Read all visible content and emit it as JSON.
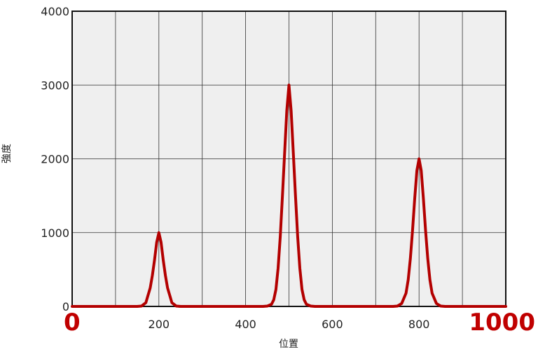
{
  "chart_data": {
    "type": "line",
    "title": "",
    "xlabel": "位置",
    "ylabel": "強度",
    "xlim": [
      0,
      1000
    ],
    "ylim": [
      0,
      4000
    ],
    "x_ticks": [
      {
        "value": 0,
        "label": "0",
        "emphasis": true
      },
      {
        "value": 200,
        "label": "200",
        "emphasis": false
      },
      {
        "value": 400,
        "label": "400",
        "emphasis": false
      },
      {
        "value": 600,
        "label": "600",
        "emphasis": false
      },
      {
        "value": 800,
        "label": "800",
        "emphasis": false
      },
      {
        "value": 1000,
        "label": "1000",
        "emphasis": true
      }
    ],
    "y_ticks": [
      {
        "value": 0,
        "label": "0"
      },
      {
        "value": 1000,
        "label": "1000"
      },
      {
        "value": 2000,
        "label": "2000"
      },
      {
        "value": 3000,
        "label": "3000"
      },
      {
        "value": 4000,
        "label": "4000"
      }
    ],
    "grid": true,
    "grid_x_step": 100,
    "grid_y_step": 1000,
    "series": [
      {
        "color": "#b30000",
        "points": [
          [
            0,
            0
          ],
          [
            150,
            0
          ],
          [
            160,
            5
          ],
          [
            170,
            50
          ],
          [
            180,
            250
          ],
          [
            185,
            420
          ],
          [
            190,
            630
          ],
          [
            195,
            870
          ],
          [
            200,
            1000
          ],
          [
            205,
            870
          ],
          [
            210,
            630
          ],
          [
            215,
            420
          ],
          [
            220,
            250
          ],
          [
            230,
            50
          ],
          [
            240,
            5
          ],
          [
            250,
            0
          ],
          [
            440,
            0
          ],
          [
            450,
            5
          ],
          [
            460,
            30
          ],
          [
            465,
            90
          ],
          [
            470,
            230
          ],
          [
            475,
            520
          ],
          [
            480,
            950
          ],
          [
            485,
            1500
          ],
          [
            490,
            2080
          ],
          [
            495,
            2650
          ],
          [
            500,
            3000
          ],
          [
            505,
            2650
          ],
          [
            510,
            2080
          ],
          [
            515,
            1500
          ],
          [
            520,
            950
          ],
          [
            525,
            520
          ],
          [
            530,
            230
          ],
          [
            535,
            90
          ],
          [
            540,
            30
          ],
          [
            550,
            5
          ],
          [
            560,
            0
          ],
          [
            740,
            0
          ],
          [
            750,
            5
          ],
          [
            760,
            40
          ],
          [
            770,
            180
          ],
          [
            775,
            360
          ],
          [
            780,
            650
          ],
          [
            785,
            1030
          ],
          [
            790,
            1460
          ],
          [
            795,
            1840
          ],
          [
            800,
            2000
          ],
          [
            805,
            1840
          ],
          [
            810,
            1460
          ],
          [
            815,
            1030
          ],
          [
            820,
            650
          ],
          [
            825,
            360
          ],
          [
            830,
            180
          ],
          [
            840,
            40
          ],
          [
            850,
            5
          ],
          [
            860,
            0
          ],
          [
            1000,
            0
          ]
        ]
      }
    ],
    "colors": {
      "plot_background": "#efefef",
      "grid": "#333333",
      "frame": "#111111",
      "edge_tick_labels": "#c00000"
    }
  }
}
